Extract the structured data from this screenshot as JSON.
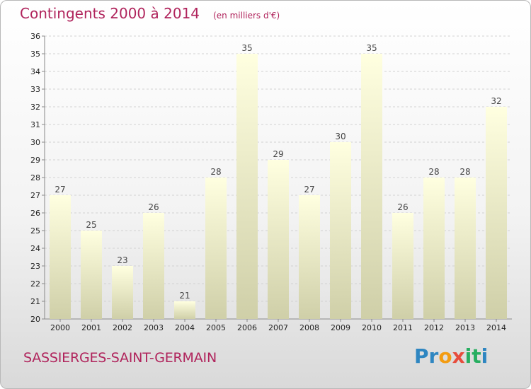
{
  "header": {
    "title": "Contingents 2000 à 2014",
    "subtitle": "(en milliers d'€)"
  },
  "footer": {
    "commune": "SASSIERGES-SAINT-GERMAIN",
    "logo_text": "Proxiti",
    "logo_letters": [
      "P",
      "r",
      "o",
      "x",
      "i",
      "t",
      "i"
    ],
    "logo_colors": [
      "#2e86c1",
      "#2e86c1",
      "#f39c12",
      "#e74c3c",
      "#27ae60",
      "#27ae60",
      "#2e86c1"
    ]
  },
  "chart_data": {
    "type": "bar",
    "title": "Contingents 2000 à 2014",
    "subtitle": "(en milliers d'€)",
    "categories": [
      "2000",
      "2001",
      "2002",
      "2003",
      "2004",
      "2005",
      "2006",
      "2007",
      "2008",
      "2009",
      "2010",
      "2011",
      "2012",
      "2013",
      "2014"
    ],
    "values": [
      27,
      25,
      23,
      26,
      21,
      28,
      35,
      29,
      27,
      30,
      35,
      26,
      28,
      28,
      32
    ],
    "ylim": [
      20,
      36
    ],
    "yticks": [
      20,
      21,
      22,
      23,
      24,
      25,
      26,
      27,
      28,
      29,
      30,
      31,
      32,
      33,
      34,
      35,
      36
    ],
    "grid": true,
    "bar_color_top": "#ffffe0",
    "bar_color_bottom": "#cfcfa8"
  }
}
